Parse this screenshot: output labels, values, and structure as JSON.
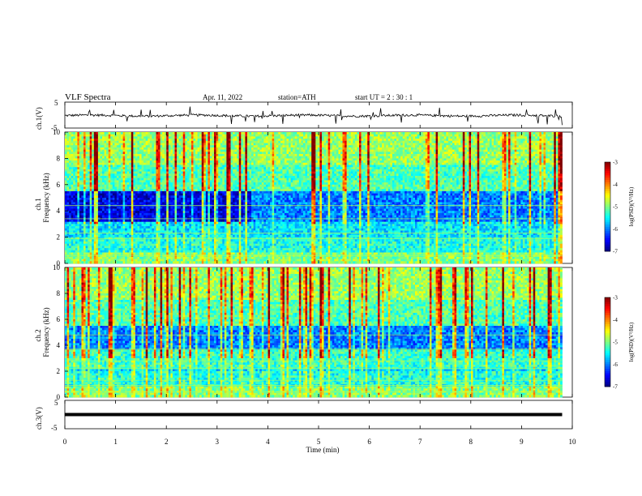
{
  "header": {
    "title": "VLF  Spectra",
    "date": "Apr. 11, 2022",
    "station": "station=ATH",
    "start_ut": "start  UT  =   2  : 30 : 1"
  },
  "chart_data": [
    {
      "type": "line",
      "name": "ch1-waveform",
      "ylabel": "ch.1(V)",
      "ylim": [
        -5,
        5
      ],
      "yticks": [
        "5",
        "-5"
      ],
      "xlim": [
        0,
        10
      ],
      "x_end": 9.8,
      "baseline": -0.2,
      "color": "#000000"
    },
    {
      "type": "heatmap",
      "name": "ch1-spectrogram",
      "ylabel": "ch.1\nFrequency  (kHz)",
      "ylabel_lines": [
        "ch.1",
        "Frequency  (kHz)"
      ],
      "ylim": [
        0,
        10
      ],
      "yticks": [
        "0",
        "2",
        "4",
        "6",
        "8",
        "10"
      ],
      "xlim": [
        0,
        10
      ],
      "x_end": 9.8,
      "colorbar": {
        "label": "log(PSD)(V²/Hz)",
        "range": [
          -7,
          -3
        ],
        "ticks": [
          "-3",
          "-4",
          "-5",
          "-6",
          "-7"
        ]
      }
    },
    {
      "type": "heatmap",
      "name": "ch2-spectrogram",
      "ylabel_lines": [
        "ch.2",
        "Frequency  (kHz)"
      ],
      "ylim": [
        0,
        10
      ],
      "yticks": [
        "0",
        "2",
        "4",
        "6",
        "8",
        "10"
      ],
      "xlim": [
        0,
        10
      ],
      "x_end": 9.8,
      "colorbar": {
        "label": "log(PSD)(V²/Hz)",
        "range": [
          -7,
          -3
        ],
        "ticks": [
          "-3",
          "-4",
          "-5",
          "-6",
          "-7"
        ]
      }
    },
    {
      "type": "line",
      "name": "ch3-waveform",
      "ylabel": "ch.3(V)",
      "ylim": [
        -5,
        5
      ],
      "yticks": [
        "5",
        "-5"
      ],
      "xlim": [
        0,
        10
      ],
      "x_end": 9.8,
      "baseline": 0,
      "color": "#000000"
    }
  ],
  "xaxis": {
    "label": "Time  (min)",
    "ticks": [
      "0",
      "1",
      "2",
      "3",
      "4",
      "5",
      "6",
      "7",
      "8",
      "9",
      "10"
    ]
  }
}
